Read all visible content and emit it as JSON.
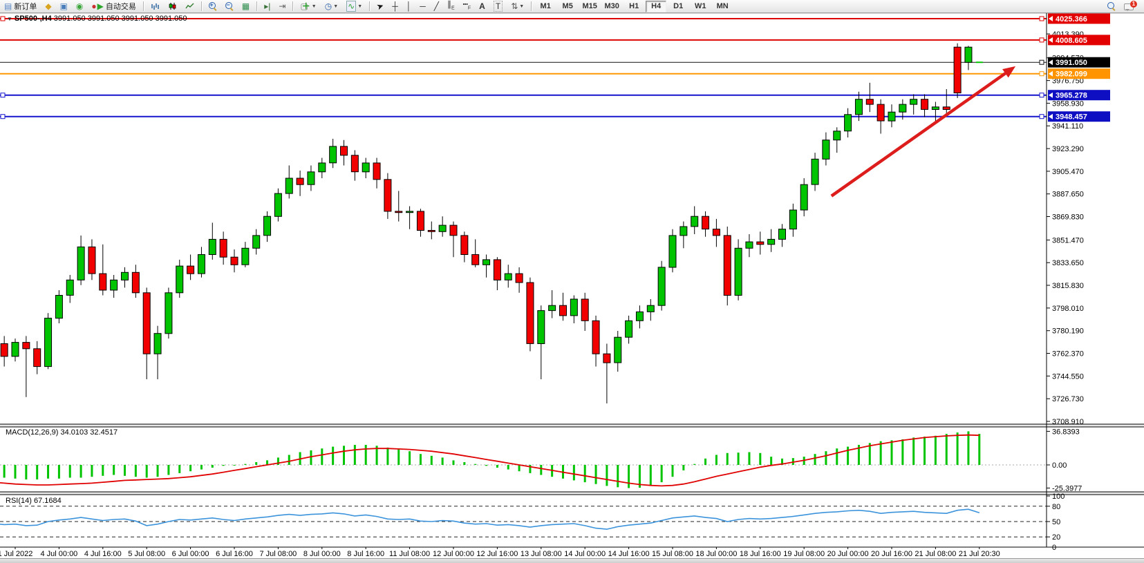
{
  "colors": {
    "bull": "#00c400",
    "bear": "#f20000",
    "wick": "#000000",
    "macd_hist": "#00c400",
    "macd_signal": "#e00000",
    "rsi_line": "#3b93dc",
    "arrow": "#dd1c1c",
    "line_red": "#dd0000",
    "line_black": "#111111",
    "line_orange": "#ff9800",
    "line_blue": "#1414cc",
    "badge_red": "#e30000",
    "badge_black": "#000000",
    "badge_orange": "#ff9400",
    "badge_blue": "#0e0ec2"
  },
  "toolbar": {
    "items": [
      {
        "name": "new-order-button",
        "icon": "newdoc",
        "label": "新订单",
        "interact": true
      },
      {
        "name": "market-watch-icon",
        "icon": "funnel",
        "interact": true
      },
      {
        "name": "data-window-icon",
        "icon": "monitor",
        "interact": true
      },
      {
        "name": "signal-icon",
        "icon": "signal",
        "interact": true
      },
      {
        "name": "autotrade-button",
        "icon": "play",
        "label": "自动交易",
        "interact": true
      },
      {
        "name": "sep1",
        "icon": "sep"
      },
      {
        "name": "bar-chart-button",
        "icon": "bars",
        "interact": true
      },
      {
        "name": "candlestick-chart-button",
        "icon": "candles",
        "interact": true
      },
      {
        "name": "line-chart-button",
        "icon": "linechart",
        "interact": true
      },
      {
        "name": "sep2",
        "icon": "sep"
      },
      {
        "name": "zoom-in-button",
        "icon": "zoomin",
        "interact": true
      },
      {
        "name": "zoom-out-button",
        "icon": "zoomout",
        "interact": true
      },
      {
        "name": "tile-windows-button",
        "icon": "tile",
        "interact": true
      },
      {
        "name": "sep3",
        "icon": "sep"
      },
      {
        "name": "auto-scroll-button",
        "icon": "autoscroll",
        "interact": true
      },
      {
        "name": "chart-shift-button",
        "icon": "shift",
        "interact": true
      },
      {
        "name": "sep4",
        "icon": "sep"
      },
      {
        "name": "new-chart-button",
        "icon": "newchart",
        "dd": true,
        "interact": true
      },
      {
        "name": "periods-button",
        "icon": "clock",
        "dd": true,
        "interact": true
      },
      {
        "name": "indicators-button",
        "icon": "indicator",
        "dd": true,
        "interact": true
      },
      {
        "name": "sep5",
        "icon": "sep"
      },
      {
        "name": "cursor-tool",
        "icon": "cursor",
        "interact": true
      },
      {
        "name": "crosshair-tool",
        "icon": "crosshair",
        "interact": true
      },
      {
        "name": "vline-tool",
        "icon": "vline",
        "interact": true
      },
      {
        "name": "hline-tool",
        "icon": "hline",
        "interact": true
      },
      {
        "name": "trendline-tool",
        "icon": "trend",
        "interact": true
      },
      {
        "name": "channel-tool",
        "icon": "channel",
        "interact": true
      },
      {
        "name": "fibonacci-tool",
        "icon": "fibo",
        "interact": true
      },
      {
        "name": "text-tool",
        "icon": "texta",
        "interact": true
      },
      {
        "name": "text-label-tool",
        "icon": "textt",
        "interact": true
      },
      {
        "name": "shapes-tool",
        "icon": "shapes",
        "dd": true,
        "interact": true
      },
      {
        "name": "sep6",
        "icon": "sep"
      }
    ],
    "timeframes": [
      {
        "label": "M1"
      },
      {
        "label": "M5"
      },
      {
        "label": "M15"
      },
      {
        "label": "M30"
      },
      {
        "label": "H1"
      },
      {
        "label": "H4",
        "active": true
      },
      {
        "label": "D1"
      },
      {
        "label": "W1"
      },
      {
        "label": "MN"
      }
    ],
    "right_items": [
      {
        "name": "search-icon",
        "icon": "search",
        "interact": true
      },
      {
        "name": "chat-icon",
        "icon": "chat",
        "badge": "1",
        "interact": true
      }
    ]
  },
  "chart": {
    "title": {
      "symbol_period": "SP500-,H4",
      "ohlc": "3991.050 3991.050 3991.050 3991.050"
    },
    "price_axis_ticks": [
      "4013.390",
      "3994.570",
      "3976.750",
      "3958.930",
      "3941.110",
      "3923.290",
      "3905.470",
      "3887.650",
      "3869.830",
      "3851.470",
      "3833.650",
      "3815.830",
      "3798.010",
      "3780.190",
      "3762.370",
      "3744.550",
      "3726.730",
      "3708.910"
    ],
    "hlines": [
      {
        "price": 4025.366,
        "label": "4025.366",
        "color_key": "line_red",
        "badge_key": "badge_red",
        "left_marker": true
      },
      {
        "price": 4008.605,
        "label": "4008.605",
        "color_key": "line_red",
        "badge_key": "badge_red",
        "left_marker": false
      },
      {
        "price": 3991.05,
        "label": "3991.050",
        "color_key": "line_black",
        "badge_key": "badge_black",
        "left_marker": false
      },
      {
        "price": 3982.099,
        "label": "3982.099",
        "color_key": "line_orange",
        "badge_key": "badge_orange",
        "left_marker": false
      },
      {
        "price": 3965.278,
        "label": "3965.278",
        "color_key": "line_blue",
        "badge_key": "badge_blue",
        "left_marker": true
      },
      {
        "price": 3948.457,
        "label": "3948.457",
        "color_key": "line_blue",
        "badge_key": "badge_blue",
        "left_marker": true
      }
    ],
    "time_labels": [
      "1 Jul 2022",
      "4 Jul 00:00",
      "4 Jul 16:00",
      "5 Jul 08:00",
      "6 Jul 00:00",
      "6 Jul 16:00",
      "7 Jul 08:00",
      "8 Jul 00:00",
      "8 Jul 16:00",
      "11 Jul 08:00",
      "12 Jul 00:00",
      "12 Jul 16:00",
      "13 Jul 08:00",
      "14 Jul 00:00",
      "14 Jul 16:00",
      "15 Jul 08:00",
      "18 Jul 00:00",
      "18 Jul 16:00",
      "19 Jul 08:00",
      "20 Jul 00:00",
      "20 Jul 16:00",
      "21 Jul 08:00",
      "21 Jul 20:30"
    ],
    "candles": [
      [
        3781,
        3788,
        3764,
        3770
      ],
      [
        3770,
        3776,
        3752,
        3760
      ],
      [
        3760,
        3774,
        3756,
        3771
      ],
      [
        3771,
        3776,
        3728,
        3766
      ],
      [
        3766,
        3772,
        3746,
        3752
      ],
      [
        3752,
        3794,
        3750,
        3790
      ],
      [
        3790,
        3812,
        3786,
        3808
      ],
      [
        3808,
        3824,
        3802,
        3820
      ],
      [
        3820,
        3855,
        3816,
        3846
      ],
      [
        3846,
        3852,
        3820,
        3825
      ],
      [
        3825,
        3848,
        3808,
        3812
      ],
      [
        3812,
        3824,
        3806,
        3820
      ],
      [
        3820,
        3830,
        3814,
        3826
      ],
      [
        3826,
        3832,
        3806,
        3810
      ],
      [
        3810,
        3814,
        3742,
        3762
      ],
      [
        3762,
        3784,
        3742,
        3778
      ],
      [
        3778,
        3814,
        3774,
        3810
      ],
      [
        3810,
        3836,
        3806,
        3831
      ],
      [
        3831,
        3840,
        3820,
        3825
      ],
      [
        3825,
        3846,
        3822,
        3840
      ],
      [
        3840,
        3865,
        3836,
        3852
      ],
      [
        3852,
        3858,
        3832,
        3838
      ],
      [
        3838,
        3844,
        3826,
        3832
      ],
      [
        3832,
        3850,
        3830,
        3845
      ],
      [
        3845,
        3860,
        3840,
        3855
      ],
      [
        3855,
        3874,
        3850,
        3870
      ],
      [
        3870,
        3892,
        3866,
        3888
      ],
      [
        3888,
        3910,
        3884,
        3900
      ],
      [
        3900,
        3906,
        3886,
        3895
      ],
      [
        3895,
        3910,
        3890,
        3905
      ],
      [
        3905,
        3916,
        3900,
        3912
      ],
      [
        3912,
        3931,
        3908,
        3925
      ],
      [
        3925,
        3930,
        3910,
        3918
      ],
      [
        3918,
        3922,
        3898,
        3905
      ],
      [
        3905,
        3916,
        3900,
        3912
      ],
      [
        3912,
        3916,
        3892,
        3899
      ],
      [
        3899,
        3904,
        3868,
        3874
      ],
      [
        3874,
        3890,
        3866,
        3873
      ],
      [
        3873,
        3878,
        3860,
        3874
      ],
      [
        3874,
        3876,
        3854,
        3859
      ],
      [
        3859,
        3866,
        3852,
        3858
      ],
      [
        3858,
        3870,
        3854,
        3863
      ],
      [
        3863,
        3866,
        3838,
        3855
      ],
      [
        3855,
        3858,
        3834,
        3840
      ],
      [
        3840,
        3852,
        3830,
        3832
      ],
      [
        3832,
        3840,
        3822,
        3836
      ],
      [
        3836,
        3838,
        3812,
        3820
      ],
      [
        3820,
        3832,
        3814,
        3825
      ],
      [
        3825,
        3830,
        3810,
        3818
      ],
      [
        3818,
        3822,
        3764,
        3770
      ],
      [
        3770,
        3800,
        3742,
        3796
      ],
      [
        3796,
        3812,
        3790,
        3800
      ],
      [
        3800,
        3810,
        3788,
        3792
      ],
      [
        3792,
        3808,
        3786,
        3805
      ],
      [
        3805,
        3810,
        3780,
        3788
      ],
      [
        3788,
        3792,
        3752,
        3762
      ],
      [
        3762,
        3770,
        3723,
        3755
      ],
      [
        3755,
        3780,
        3748,
        3775
      ],
      [
        3775,
        3792,
        3770,
        3788
      ],
      [
        3788,
        3800,
        3782,
        3795
      ],
      [
        3795,
        3805,
        3788,
        3800
      ],
      [
        3800,
        3835,
        3796,
        3830
      ],
      [
        3830,
        3860,
        3826,
        3855
      ],
      [
        3855,
        3866,
        3845,
        3862
      ],
      [
        3862,
        3878,
        3856,
        3870
      ],
      [
        3870,
        3874,
        3854,
        3860
      ],
      [
        3860,
        3868,
        3846,
        3855
      ],
      [
        3855,
        3862,
        3800,
        3808
      ],
      [
        3808,
        3852,
        3804,
        3845
      ],
      [
        3845,
        3856,
        3838,
        3850
      ],
      [
        3850,
        3858,
        3840,
        3848
      ],
      [
        3848,
        3860,
        3842,
        3852
      ],
      [
        3852,
        3864,
        3846,
        3860
      ],
      [
        3860,
        3880,
        3854,
        3875
      ],
      [
        3875,
        3900,
        3870,
        3895
      ],
      [
        3895,
        3920,
        3890,
        3915
      ],
      [
        3915,
        3936,
        3910,
        3930
      ],
      [
        3930,
        3940,
        3920,
        3937
      ],
      [
        3937,
        3955,
        3932,
        3950
      ],
      [
        3950,
        3968,
        3945,
        3962
      ],
      [
        3962,
        3975,
        3952,
        3958
      ],
      [
        3958,
        3962,
        3935,
        3945
      ],
      [
        3945,
        3958,
        3940,
        3952
      ],
      [
        3952,
        3962,
        3946,
        3958
      ],
      [
        3958,
        3966,
        3950,
        3962
      ],
      [
        3962,
        3966,
        3948,
        3954
      ],
      [
        3954,
        3960,
        3944,
        3956
      ],
      [
        3956,
        3970,
        3950,
        3954
      ],
      [
        4003,
        4006,
        3963,
        3967
      ],
      [
        3991,
        4004,
        3985,
        4003
      ],
      [
        3991.05,
        3991.05,
        3991.05,
        3991.05
      ]
    ],
    "annotation_arrow": {
      "from_i": 76.5,
      "from_p": 3886,
      "to_i": 93.3,
      "to_p": 3988
    }
  },
  "macd": {
    "label": "MACD(12,26,9)",
    "values": "34.0103 32.4517",
    "ticks": [
      {
        "v": 36.8393,
        "label": "36.8393"
      },
      {
        "v": 0,
        "label": "0.00"
      },
      {
        "v": -25.3977,
        "label": "-25.3977"
      }
    ],
    "hist": [
      -12,
      -14,
      -15,
      -16,
      -16,
      -15,
      -15,
      -14,
      -14,
      -13,
      -12,
      -11,
      -12,
      -13,
      -14,
      -13,
      -11,
      -9,
      -7,
      -5,
      -3,
      -1,
      0,
      1,
      3,
      5,
      8,
      11,
      14,
      16,
      18,
      20,
      21,
      22,
      22,
      21,
      19,
      17,
      15,
      12,
      10,
      8,
      5,
      3,
      1,
      -1,
      -3,
      -5,
      -7,
      -9,
      -11,
      -13,
      -15,
      -17,
      -19,
      -21,
      -23,
      -24.5,
      -25.4,
      -25,
      -23,
      -19,
      -13,
      -6,
      1,
      7,
      11,
      13,
      13.5,
      14,
      13,
      9,
      7,
      7.5,
      9,
      12,
      15,
      18,
      20,
      22,
      24,
      26,
      27,
      28,
      30,
      31,
      32,
      34,
      35.5,
      36.8,
      34.01
    ],
    "signal": [
      -19,
      -20,
      -21,
      -21.5,
      -22,
      -22,
      -21.5,
      -21,
      -20.5,
      -20,
      -19,
      -18,
      -17,
      -16.5,
      -16,
      -15.5,
      -15,
      -14,
      -13,
      -11.5,
      -10,
      -8,
      -6,
      -4,
      -2,
      0,
      2,
      4,
      6.5,
      9,
      11,
      13,
      15,
      16.5,
      17.5,
      18,
      18,
      17.5,
      17,
      16,
      15,
      13.5,
      12,
      10,
      8,
      6,
      4,
      2,
      0,
      -2,
      -4,
      -6,
      -8,
      -10,
      -12,
      -14,
      -16,
      -18,
      -20,
      -21.5,
      -22.5,
      -23,
      -22.5,
      -21,
      -18.5,
      -15.5,
      -12.5,
      -10,
      -7.5,
      -5,
      -2.5,
      -0.5,
      1,
      3,
      5,
      7.5,
      10,
      13,
      16,
      18.5,
      21,
      23,
      25,
      27,
      28.5,
      30,
      31,
      31.8,
      32.4,
      32.8,
      32.45
    ]
  },
  "rsi": {
    "label": "RSI(14)",
    "value": "67.1684",
    "levels": [
      80,
      50,
      20
    ],
    "axis_labels": [
      {
        "v": 100,
        "label": "100"
      },
      {
        "v": 80,
        "label": "80"
      },
      {
        "v": 50,
        "label": "50"
      },
      {
        "v": 20,
        "label": "20"
      },
      {
        "v": 0,
        "label": "0"
      }
    ],
    "values": [
      46,
      44,
      45,
      42,
      43,
      50,
      53,
      55,
      58,
      55,
      52,
      54,
      55,
      51,
      42,
      45,
      50,
      54,
      53,
      55,
      57,
      54,
      52,
      55,
      57,
      59,
      62,
      64,
      62,
      64,
      65,
      67,
      65,
      61,
      63,
      60,
      55,
      54,
      55,
      51,
      50,
      52,
      51,
      47,
      45,
      46,
      43,
      44,
      42,
      39,
      42,
      44,
      45,
      46,
      42,
      37,
      35,
      40,
      43,
      45,
      47,
      52,
      57,
      59,
      61,
      58,
      56,
      50,
      54,
      56,
      55,
      56,
      58,
      60,
      63,
      66,
      68,
      69,
      71,
      72,
      70,
      66,
      68,
      69,
      70,
      68,
      67,
      66,
      72,
      74,
      67.17
    ]
  }
}
